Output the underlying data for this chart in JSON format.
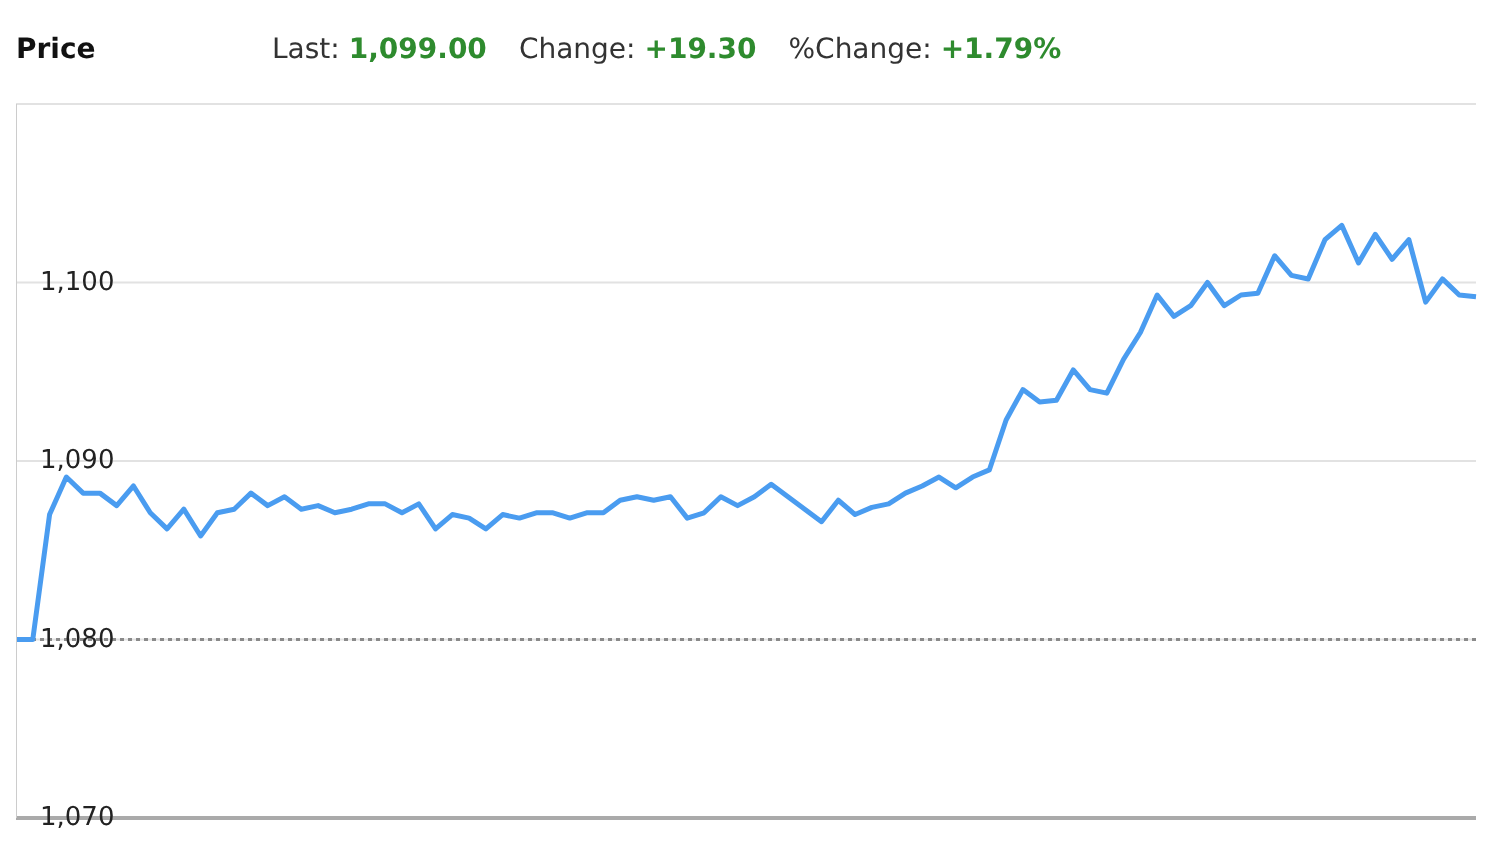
{
  "chart_data": {
    "type": "line",
    "title": "Price",
    "annotations": [
      "Last: 1,099.00",
      "Change: +19.30",
      "%Change: +1.79%"
    ],
    "categories": [
      null,
      null,
      null,
      null,
      null,
      null,
      null,
      null,
      null,
      null,
      null,
      null,
      null,
      null,
      null,
      null,
      null,
      null,
      null,
      null,
      null,
      null,
      null,
      null,
      null,
      null,
      null,
      null,
      null,
      null,
      null,
      null,
      null,
      null,
      null,
      null,
      null,
      null,
      null,
      null,
      null,
      null,
      null,
      null,
      null,
      null,
      null,
      null,
      null,
      null,
      null,
      null,
      null,
      null,
      null,
      null,
      null,
      null,
      null,
      null,
      null,
      null,
      null,
      null,
      null,
      null,
      null,
      null,
      null,
      null,
      null,
      null,
      null,
      null,
      null,
      null,
      null,
      null,
      null,
      null,
      null,
      null,
      null,
      null,
      null,
      null,
      null,
      null
    ],
    "series": [
      {
        "color": "#4a9cf0",
        "values": [
          1080.0,
          1080.0,
          1087.0,
          1089.1,
          1088.2,
          1088.2,
          1087.5,
          1088.6,
          1087.1,
          1086.2,
          1087.3,
          1085.8,
          1087.1,
          1087.3,
          1088.2,
          1087.5,
          1088.0,
          1087.3,
          1087.5,
          1087.1,
          1087.3,
          1087.6,
          1087.6,
          1087.1,
          1087.6,
          1086.2,
          1087.0,
          1086.8,
          1086.2,
          1087.0,
          1086.8,
          1087.1,
          1087.1,
          1086.8,
          1087.1,
          1087.1,
          1087.8,
          1088.0,
          1087.8,
          1088.0,
          1086.8,
          1087.1,
          1088.0,
          1087.5,
          1088.0,
          1088.7,
          1088.0,
          1087.3,
          1086.6,
          1087.8,
          1087.0,
          1087.4,
          1087.6,
          1088.2,
          1088.6,
          1089.1,
          1088.5,
          1089.1,
          1089.5,
          1092.3,
          1094.0,
          1093.3,
          1093.4,
          1095.1,
          1094.0,
          1093.8,
          1095.7,
          1097.2,
          1099.3,
          1098.1,
          1098.7,
          1100.0,
          1098.7,
          1099.3,
          1099.4,
          1101.5,
          1100.4,
          1100.2,
          1102.4,
          1103.2,
          1101.1,
          1102.7,
          1101.3,
          1102.4,
          1098.9,
          1100.2,
          1099.3,
          1099.2
        ]
      }
    ],
    "ylim": [
      1070,
      1110
    ],
    "yticks": [
      {
        "value": 1070,
        "label": "1,070"
      },
      {
        "value": 1080,
        "label": "1,080"
      },
      {
        "value": 1090,
        "label": "1,090"
      },
      {
        "value": 1100,
        "label": "1,100"
      }
    ],
    "tick_labels": "y",
    "grid": "y",
    "marker": "none",
    "line_style": "solid",
    "ref_lines": [
      {
        "axis": "y",
        "value": 1080,
        "color": "#8a8a8a",
        "line_style": "dotted"
      }
    ]
  }
}
